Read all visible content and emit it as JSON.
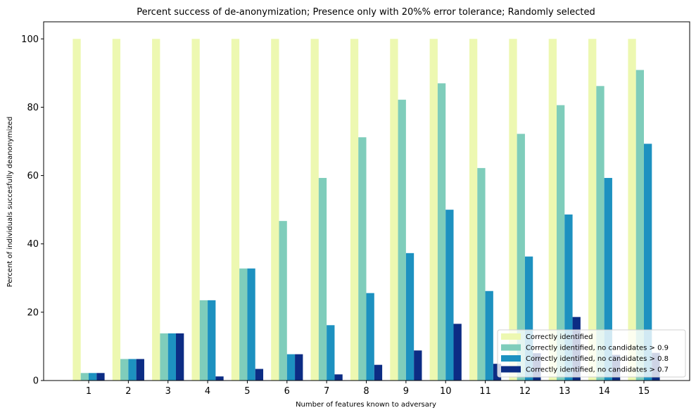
{
  "chart_data": {
    "type": "bar",
    "title": "Percent success of de-anonymization; Presence only with 20%% error tolerance; Randomly selected",
    "xlabel": "Number of features known to adversary",
    "ylabel": "Percent of individuals succesfully deanonymized",
    "categories": [
      "1",
      "2",
      "3",
      "4",
      "5",
      "6",
      "7",
      "8",
      "9",
      "10",
      "11",
      "12",
      "13",
      "14",
      "15"
    ],
    "ylim": [
      0,
      105
    ],
    "yticks": [
      "0",
      "20",
      "40",
      "60",
      "80",
      "100"
    ],
    "grid": false,
    "legend_position": "bottom-right",
    "series": [
      {
        "name": "Correctly identified",
        "color": "#edf8b1",
        "values": [
          100,
          100,
          100,
          100,
          100,
          100,
          100,
          100,
          100,
          100,
          100,
          100,
          100,
          100,
          100
        ]
      },
      {
        "name": "Correctly identified, no candidates > 0.9",
        "color": "#7fcdbb",
        "values": [
          2.2,
          6.3,
          13.8,
          23.5,
          32.8,
          46.7,
          59.3,
          71.2,
          82.2,
          87.0,
          62.2,
          72.2,
          80.6,
          86.2,
          90.9
        ]
      },
      {
        "name": "Correctly identified, no candidates > 0.8",
        "color": "#1d91c0",
        "values": [
          2.2,
          6.3,
          13.8,
          23.5,
          32.8,
          7.7,
          16.2,
          25.6,
          37.3,
          50.0,
          26.2,
          36.3,
          48.6,
          59.3,
          69.3
        ]
      },
      {
        "name": "Correctly identified, no candidates > 0.7",
        "color": "#0c2c84",
        "values": [
          2.2,
          6.3,
          13.8,
          1.2,
          3.4,
          7.7,
          1.8,
          4.6,
          8.8,
          16.6,
          4.9,
          8.0,
          18.6,
          7.5,
          8.1
        ]
      }
    ]
  }
}
